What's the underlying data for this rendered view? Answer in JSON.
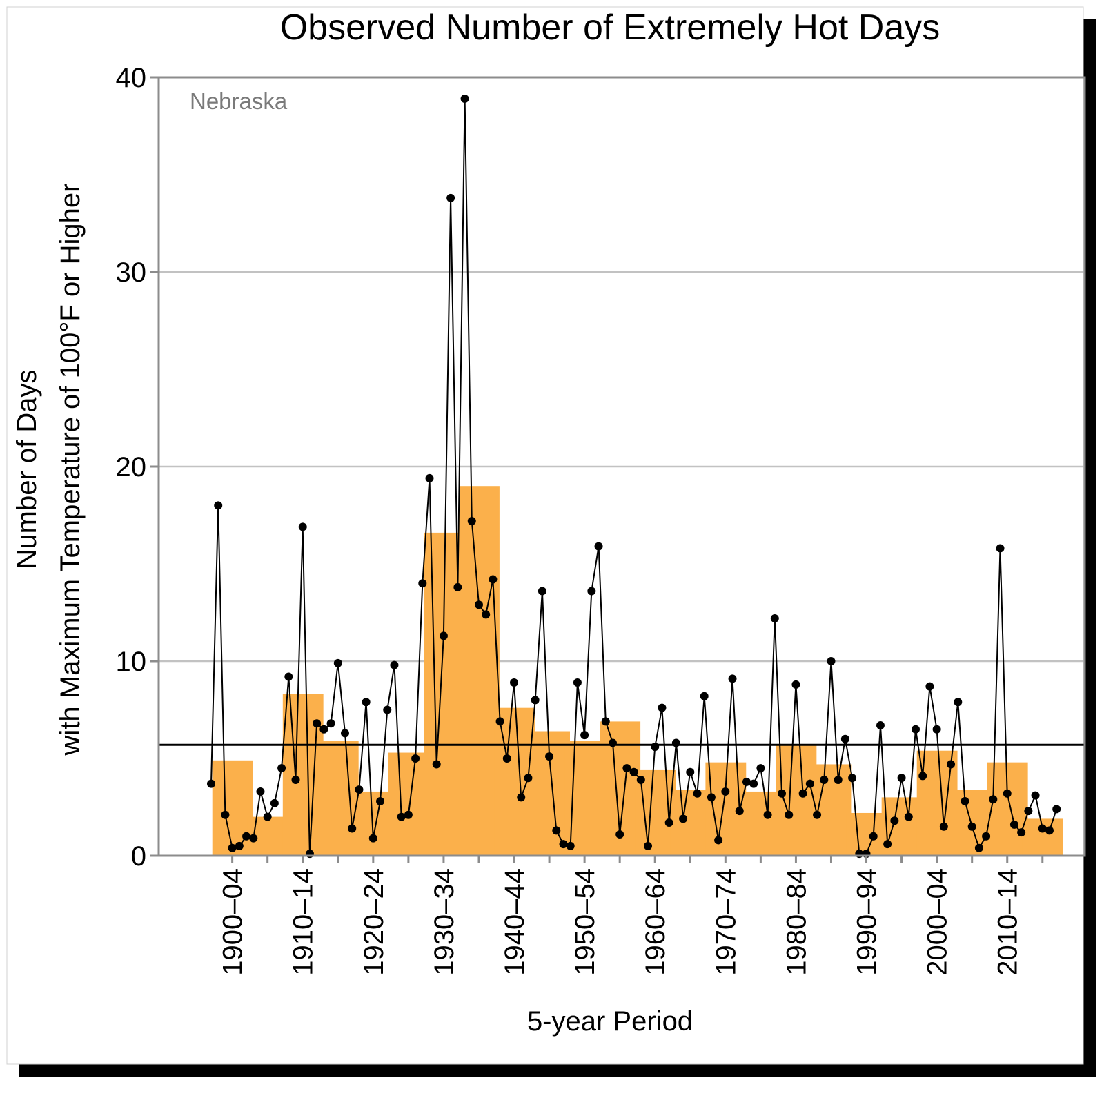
{
  "chart_data": {
    "type": "bar",
    "title": "Observed Number of Extremely Hot Days",
    "annotation": "Nebraska",
    "xlabel": "5-year Period",
    "ylabel": [
      "Number of Days",
      "with Maximum Temperature of 100°F or Higher"
    ],
    "ylim": [
      0,
      40
    ],
    "yticks": [
      0,
      10,
      20,
      30,
      40
    ],
    "grid": true,
    "bar_color": "#fbb04b",
    "line_color": "#000000",
    "reference_line": 5.7,
    "period_tick_labels": [
      "1900–04",
      "1910–14",
      "1920–24",
      "1930–34",
      "1940–44",
      "1950–54",
      "1960–64",
      "1970–74",
      "1980–84",
      "1990–94",
      "2000–04",
      "2010–14"
    ],
    "periods": [
      "1900–04",
      "1905–09",
      "1910–14",
      "1915–19",
      "1920–24",
      "1925–29",
      "1930–34",
      "1935–39",
      "1940–44",
      "1945–49",
      "1950–54",
      "1955–59",
      "1960–64",
      "1965–69",
      "1970–74",
      "1975–79",
      "1980–84",
      "1985–89",
      "1990–94",
      "1995–99",
      "2000–04",
      "2005–09",
      "2010–14",
      "2015–19"
    ],
    "period_values": [
      4.9,
      2.0,
      8.3,
      5.9,
      3.3,
      5.3,
      16.6,
      19.0,
      7.6,
      6.4,
      5.9,
      6.9,
      4.4,
      3.4,
      4.8,
      3.3,
      5.7,
      4.7,
      2.2,
      3.0,
      5.4,
      3.4,
      4.8,
      1.9
    ],
    "annual": {
      "start_year": 1899,
      "values": [
        3.7,
        18.0,
        2.1,
        0.4,
        0.5,
        1.0,
        0.9,
        3.3,
        2.0,
        2.7,
        4.5,
        9.2,
        3.9,
        16.9,
        0.1,
        6.8,
        6.5,
        6.8,
        9.9,
        6.3,
        1.4,
        3.4,
        7.9,
        0.9,
        2.8,
        7.5,
        9.8,
        2.0,
        2.1,
        5.0,
        14.0,
        19.4,
        4.7,
        11.3,
        33.8,
        13.8,
        38.9,
        17.2,
        12.9,
        12.4,
        14.2,
        6.9,
        5.0,
        8.9,
        3.0,
        4.0,
        8.0,
        13.6,
        5.1,
        1.3,
        0.6,
        0.5,
        8.9,
        6.2,
        13.6,
        15.9,
        6.9,
        5.8,
        1.1,
        4.5,
        4.3,
        3.9,
        0.5,
        5.6,
        7.6,
        1.7,
        5.8,
        1.9,
        4.3,
        3.2,
        8.2,
        3.0,
        0.8,
        3.3,
        9.1,
        2.3,
        3.8,
        3.7,
        4.5,
        2.1,
        12.2,
        3.2,
        2.1,
        8.8,
        3.2,
        3.7,
        2.1,
        3.9,
        10.0,
        3.9,
        6.0,
        4.0,
        0.1,
        0.1,
        1.0,
        6.7,
        0.6,
        1.8,
        4.0,
        2.0,
        6.5,
        4.1,
        8.7,
        6.5,
        1.5,
        4.7,
        7.9,
        2.8,
        1.5,
        0.4,
        1.0,
        2.9,
        15.8,
        3.2,
        1.6,
        1.2,
        2.3,
        3.1,
        1.4,
        1.3,
        2.4
      ]
    }
  }
}
